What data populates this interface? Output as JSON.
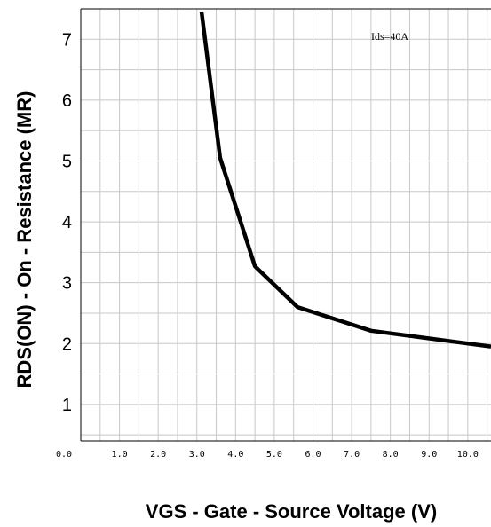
{
  "chart_data": {
    "type": "line",
    "title": "",
    "xlabel": "VGS - Gate - Source Voltage (V)",
    "ylabel": "RDS(ON) - On - Resistance (MR)",
    "annotation": "Ids=40A",
    "xlim": [
      0,
      10.6
    ],
    "ylim": [
      0.4,
      7.5
    ],
    "grid": true,
    "x_ticks": [
      "0.0",
      "1.0",
      "2.0",
      "3.0",
      "4.0",
      "5.0",
      "6.0",
      "7.0",
      "8.0",
      "9.0",
      "10.0"
    ],
    "y_ticks": [
      "1",
      "2",
      "3",
      "4",
      "5",
      "6",
      "7"
    ],
    "series": [
      {
        "x": [
          3.12,
          3.6,
          4.5,
          5.6,
          7.5,
          10.6
        ],
        "y": [
          7.45,
          5.05,
          3.27,
          2.6,
          2.21,
          1.95
        ]
      }
    ],
    "colors": {
      "line": "#000000",
      "grid": "#c8c8c8",
      "axis": "#000000"
    }
  }
}
